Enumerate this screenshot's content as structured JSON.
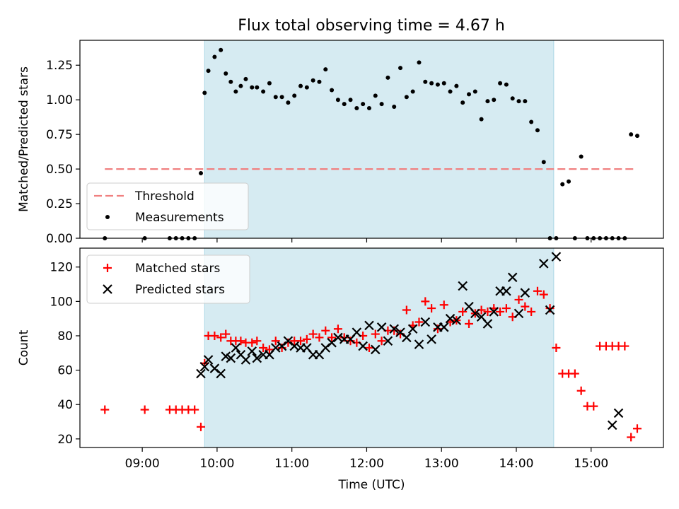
{
  "title": "Flux total observing time = 4.67 h",
  "chart_data": [
    {
      "type": "scatter",
      "ylabel": "Matched/Predicted stars",
      "xlabel": "",
      "xlim": [
        "08:10",
        "15:58"
      ],
      "ylim": [
        0,
        1.43
      ],
      "yticks": [
        0.0,
        0.25,
        0.5,
        0.75,
        1.0,
        1.25
      ],
      "ytick_labels": [
        "0.00",
        "0.25",
        "0.50",
        "0.75",
        "1.00",
        "1.25"
      ],
      "shaded_span": [
        "09:50",
        "14:30"
      ],
      "legend_position": "lower-left",
      "threshold": {
        "name": "Threshold",
        "y": 0.5,
        "x_from": "08:30",
        "x_to": "15:35",
        "color": "#f08080"
      },
      "series": [
        {
          "name": "Measurements",
          "color": "#000000",
          "marker": "dot",
          "x": [
            "08:30",
            "09:02",
            "09:22",
            "09:27",
            "09:32",
            "09:37",
            "09:42",
            "09:47",
            "09:50",
            "09:53",
            "09:58",
            "10:03",
            "10:07",
            "10:11",
            "10:15",
            "10:19",
            "10:23",
            "10:28",
            "10:32",
            "10:37",
            "10:42",
            "10:47",
            "10:52",
            "10:57",
            "11:02",
            "11:07",
            "11:12",
            "11:17",
            "11:22",
            "11:27",
            "11:32",
            "11:37",
            "11:42",
            "11:47",
            "11:52",
            "11:57",
            "12:02",
            "12:07",
            "12:12",
            "12:17",
            "12:22",
            "12:27",
            "12:32",
            "12:37",
            "12:42",
            "12:47",
            "12:52",
            "12:57",
            "13:02",
            "13:07",
            "13:12",
            "13:17",
            "13:22",
            "13:27",
            "13:32",
            "13:37",
            "13:42",
            "13:47",
            "13:52",
            "13:57",
            "14:02",
            "14:07",
            "14:12",
            "14:17",
            "14:22",
            "14:27",
            "14:32",
            "14:37",
            "14:42",
            "14:47",
            "14:52",
            "14:57",
            "15:02",
            "15:07",
            "15:12",
            "15:17",
            "15:22",
            "15:27",
            "15:32",
            "15:37"
          ],
          "y": [
            0.0,
            0.0,
            0.0,
            0.0,
            0.0,
            0.0,
            0.0,
            0.47,
            1.05,
            1.21,
            1.31,
            1.36,
            1.19,
            1.13,
            1.06,
            1.1,
            1.15,
            1.09,
            1.09,
            1.06,
            1.12,
            1.02,
            1.02,
            0.98,
            1.03,
            1.1,
            1.09,
            1.14,
            1.13,
            1.22,
            1.07,
            1.0,
            0.97,
            1.0,
            0.94,
            0.97,
            0.94,
            1.03,
            0.97,
            1.16,
            0.95,
            1.23,
            1.02,
            1.06,
            1.27,
            1.13,
            1.12,
            1.11,
            1.12,
            1.06,
            1.1,
            0.98,
            1.04,
            1.06,
            0.86,
            0.99,
            1.0,
            1.12,
            1.11,
            1.01,
            0.99,
            0.99,
            0.84,
            0.78,
            0.55,
            0.0,
            0.0,
            0.39,
            0.41,
            0.0,
            0.59,
            0.0,
            0.0,
            0.0,
            0.0,
            0.0,
            0.0,
            0.0,
            0.75,
            0.74
          ]
        }
      ]
    },
    {
      "type": "scatter",
      "ylabel": "Count",
      "xlabel": "Time (UTC)",
      "xlim": [
        "08:10",
        "15:58"
      ],
      "ylim": [
        15,
        131
      ],
      "yticks": [
        20,
        40,
        60,
        80,
        100,
        120
      ],
      "ytick_labels": [
        "20",
        "40",
        "60",
        "80",
        "100",
        "120"
      ],
      "xticks": [
        "09:00",
        "10:00",
        "11:00",
        "12:00",
        "13:00",
        "14:00",
        "15:00"
      ],
      "xtick_labels": [
        "09:00",
        "10:00",
        "11:00",
        "12:00",
        "13:00",
        "14:00",
        "15:00"
      ],
      "shaded_span": [
        "09:50",
        "14:30"
      ],
      "legend_position": "upper-left",
      "series": [
        {
          "name": "Matched stars",
          "color": "#ff0000",
          "marker": "plus",
          "x": [
            "08:30",
            "09:02",
            "09:22",
            "09:27",
            "09:32",
            "09:37",
            "09:42",
            "09:47",
            "09:50",
            "09:53",
            "09:58",
            "10:03",
            "10:07",
            "10:11",
            "10:15",
            "10:19",
            "10:23",
            "10:28",
            "10:32",
            "10:37",
            "10:42",
            "10:47",
            "10:52",
            "10:57",
            "11:02",
            "11:07",
            "11:12",
            "11:17",
            "11:22",
            "11:27",
            "11:32",
            "11:37",
            "11:42",
            "11:47",
            "11:52",
            "11:57",
            "12:02",
            "12:07",
            "12:12",
            "12:17",
            "12:22",
            "12:27",
            "12:32",
            "12:37",
            "12:42",
            "12:47",
            "12:52",
            "12:57",
            "13:02",
            "13:07",
            "13:12",
            "13:17",
            "13:22",
            "13:27",
            "13:32",
            "13:37",
            "13:42",
            "13:47",
            "13:52",
            "13:57",
            "14:02",
            "14:07",
            "14:12",
            "14:17",
            "14:22",
            "14:27",
            "14:32",
            "14:37",
            "14:42",
            "14:47",
            "14:52",
            "14:57",
            "15:02",
            "15:07",
            "15:12",
            "15:17",
            "15:22",
            "15:27",
            "15:32",
            "15:37"
          ],
          "y": [
            37,
            37,
            37,
            37,
            37,
            37,
            37,
            27,
            64,
            80,
            80,
            79,
            81,
            77,
            77,
            77,
            76,
            76,
            77,
            73,
            72,
            77,
            73,
            76,
            77,
            77,
            78,
            81,
            79,
            83,
            79,
            84,
            79,
            77,
            76,
            80,
            73,
            81,
            77,
            83,
            83,
            81,
            95,
            86,
            88,
            100,
            96,
            84,
            98,
            88,
            89,
            94,
            87,
            93,
            95,
            94,
            96,
            94,
            96,
            91,
            101,
            97,
            94,
            106,
            104,
            96,
            73,
            58,
            58,
            58,
            48,
            39,
            39,
            74,
            74,
            74,
            74,
            74,
            21,
            26
          ]
        },
        {
          "name": "Predicted stars",
          "color": "#000000",
          "marker": "x",
          "x": [
            "09:47",
            "09:50",
            "09:53",
            "09:58",
            "10:03",
            "10:07",
            "10:11",
            "10:15",
            "10:19",
            "10:23",
            "10:28",
            "10:32",
            "10:37",
            "10:42",
            "10:47",
            "10:52",
            "10:57",
            "11:02",
            "11:07",
            "11:12",
            "11:17",
            "11:22",
            "11:27",
            "11:32",
            "11:37",
            "11:42",
            "11:47",
            "11:52",
            "11:57",
            "12:02",
            "12:07",
            "12:12",
            "12:17",
            "12:22",
            "12:27",
            "12:32",
            "12:37",
            "12:42",
            "12:47",
            "12:52",
            "12:57",
            "13:02",
            "13:07",
            "13:12",
            "13:17",
            "13:22",
            "13:27",
            "13:32",
            "13:37",
            "13:42",
            "13:47",
            "13:52",
            "13:57",
            "14:02",
            "14:07",
            "14:12",
            "14:17",
            "14:22",
            "14:27",
            "14:32",
            "14:37",
            "14:42",
            "14:47",
            "14:52",
            "14:57",
            "15:02",
            "15:07",
            "15:12",
            "15:17",
            "15:22",
            "15:27",
            "15:32",
            "15:37"
          ],
          "y": [
            58,
            62,
            66,
            61,
            58,
            68,
            67,
            73,
            69,
            66,
            71,
            67,
            69,
            69,
            73,
            74,
            77,
            74,
            73,
            73,
            69,
            69,
            73,
            76,
            79,
            78,
            78,
            82,
            74,
            86,
            72,
            85,
            77,
            84,
            82,
            79,
            84,
            75,
            88,
            78,
            85,
            85,
            90,
            89,
            109,
            97,
            93,
            91,
            87,
            94,
            106,
            106,
            114,
            93,
            105,
            null,
            null,
            122,
            95,
            126,
            null,
            null,
            null,
            null,
            null,
            null,
            null,
            null,
            28,
            35,
            null,
            null,
            null
          ]
        }
      ]
    }
  ]
}
